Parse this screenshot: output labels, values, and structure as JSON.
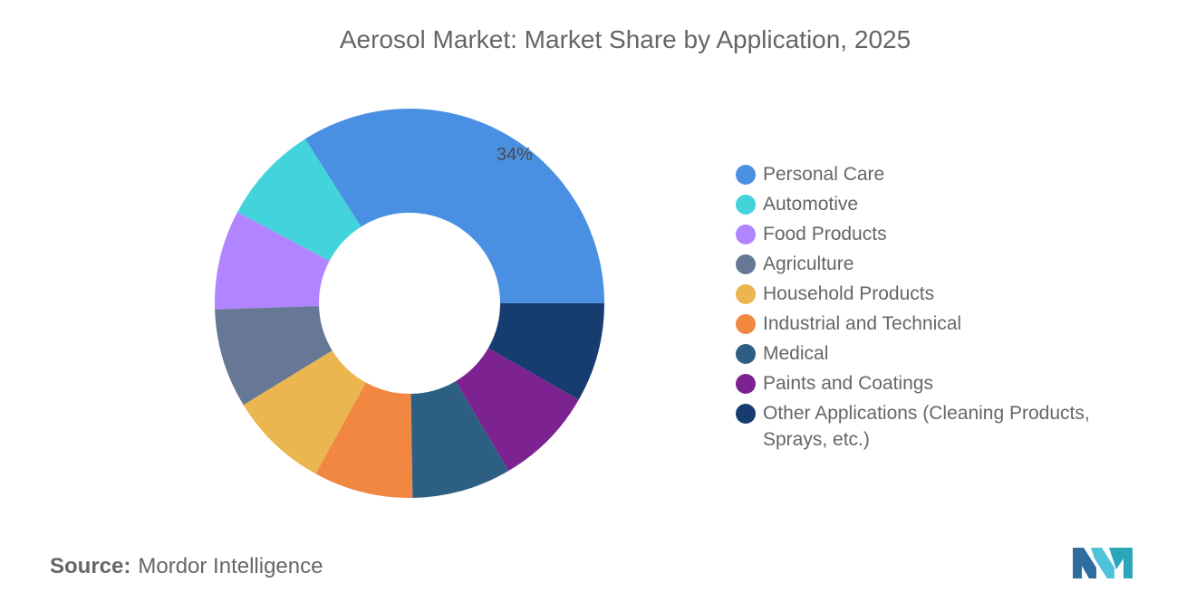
{
  "title": "Aerosol Market: Market Share by Application, 2025",
  "source": {
    "label": "Source:",
    "name": "Mordor Intelligence"
  },
  "logo_icon": "mordor-intelligence-logo",
  "chart_data": {
    "type": "pie",
    "subtype": "donut",
    "title": "Aerosol Market: Market Share by Application, 2025",
    "unit": "%",
    "legend_position": "right",
    "series": [
      {
        "name": "Personal Care",
        "value": 34,
        "color": "#4A90E2",
        "label": "34%"
      },
      {
        "name": "Automotive",
        "value": 8.25,
        "color": "#43D3DB",
        "label": ""
      },
      {
        "name": "Food Products",
        "value": 8.25,
        "color": "#B185FF",
        "label": ""
      },
      {
        "name": "Agriculture",
        "value": 8.25,
        "color": "#667896",
        "label": ""
      },
      {
        "name": "Household Products",
        "value": 8.25,
        "color": "#EBB64F",
        "label": ""
      },
      {
        "name": "Industrial and Technical",
        "value": 8.25,
        "color": "#F28741",
        "label": ""
      },
      {
        "name": "Medical",
        "value": 8.25,
        "color": "#2D5F83",
        "label": ""
      },
      {
        "name": "Paints and Coatings",
        "value": 8.25,
        "color": "#7D2391",
        "label": ""
      },
      {
        "name": "Other Applications (Cleaning Products, Sprays, etc.)",
        "value": 8.25,
        "color": "#173D70",
        "label": ""
      }
    ]
  }
}
